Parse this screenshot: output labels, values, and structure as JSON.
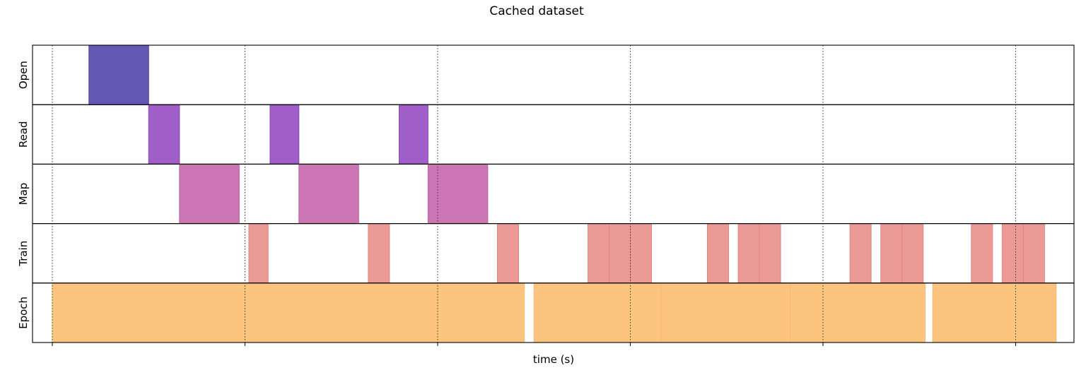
{
  "chart_data": {
    "type": "timeline",
    "title": "Cached dataset",
    "xlabel": "time (s)",
    "xlim": [
      0,
      5.4
    ],
    "xticks": [
      0,
      1,
      2,
      3,
      4,
      5
    ],
    "grid": "x-dotted",
    "rows": [
      {
        "name": "Open",
        "color": "#6359b5",
        "edge": "#4b3f9a",
        "intervals": [
          [
            0.19,
            0.5
          ]
        ]
      },
      {
        "name": "Read",
        "color": "#a05fc8",
        "edge": "#8a48b6",
        "intervals": [
          [
            0.5,
            0.66
          ],
          [
            1.13,
            1.28
          ],
          [
            1.8,
            1.95
          ]
        ]
      },
      {
        "name": "Map",
        "color": "#cc75b4",
        "edge": "#bb5fa3",
        "intervals": [
          [
            0.66,
            0.97
          ],
          [
            1.28,
            1.59
          ],
          [
            1.95,
            2.26
          ]
        ]
      },
      {
        "name": "Train",
        "color": "#ec9a95",
        "edge": "#e08680",
        "intervals": [
          [
            1.02,
            1.12
          ],
          [
            1.64,
            1.75
          ],
          [
            2.31,
            2.42
          ],
          [
            2.78,
            2.89
          ],
          [
            2.89,
            3.0
          ],
          [
            3.0,
            3.11
          ],
          [
            3.4,
            3.51
          ],
          [
            3.56,
            3.67
          ],
          [
            3.67,
            3.78
          ],
          [
            4.14,
            4.25
          ],
          [
            4.3,
            4.41
          ],
          [
            4.41,
            4.52
          ],
          [
            4.77,
            4.88
          ],
          [
            4.93,
            5.04
          ],
          [
            5.04,
            5.15
          ]
        ]
      },
      {
        "name": "Epoch",
        "color": "#fdc480",
        "edge": "#f7b86a",
        "intervals": [
          [
            0.0,
            2.45
          ],
          [
            2.5,
            3.16
          ],
          [
            3.16,
            3.83
          ],
          [
            3.83,
            4.53
          ],
          [
            4.57,
            5.21
          ]
        ]
      }
    ]
  }
}
